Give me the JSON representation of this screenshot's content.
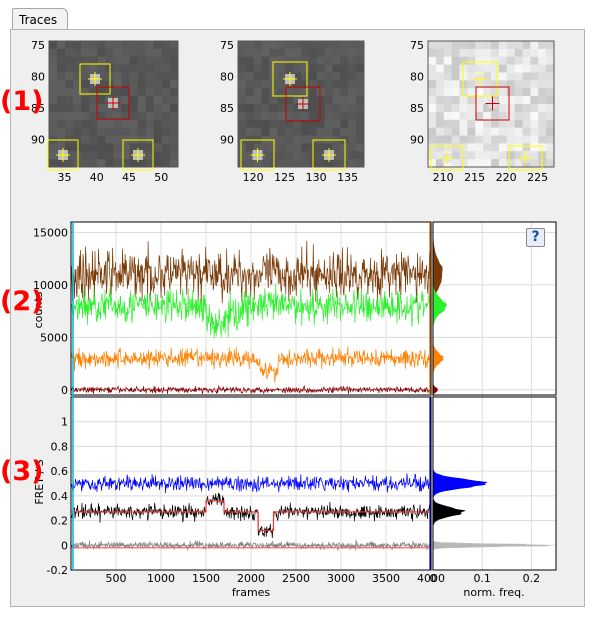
{
  "tab_label": "Traces",
  "section_labels": [
    "(1)",
    "(2)",
    "(3)"
  ],
  "help_label": "?",
  "images": [
    {
      "x_ticks": [
        "35",
        "40",
        "45",
        "50"
      ],
      "y_ticks": [
        "75",
        "80",
        "85",
        "90"
      ],
      "background": "gray"
    },
    {
      "x_ticks": [
        "120",
        "125",
        "130",
        "135"
      ],
      "y_ticks": [
        "75",
        "80",
        "85",
        "90"
      ],
      "background": "gray"
    },
    {
      "x_ticks": [
        "210",
        "215",
        "220",
        "225"
      ],
      "y_ticks": [
        "75",
        "80",
        "85",
        "90"
      ],
      "background": "light"
    }
  ],
  "chart_data": [
    {
      "type": "line",
      "ylabel": "counts",
      "ylim": [
        -500,
        16000
      ],
      "y_ticks": [
        "0",
        "5000",
        "10000",
        "15000"
      ],
      "xlim": [
        0,
        4000
      ],
      "series": [
        {
          "color": "#7a3a06",
          "mean": 11000,
          "spread": 1500
        },
        {
          "color": "#2bf02b",
          "mean": 8000,
          "spread": 1100
        },
        {
          "color": "#ff8000",
          "mean": 3000,
          "spread": 600
        },
        {
          "color": "#8b0000",
          "mean": 0,
          "spread": 200
        }
      ]
    },
    {
      "type": "line",
      "ylabel": "FRET / S",
      "xlabel": "frames",
      "ylim": [
        -0.2,
        1.2
      ],
      "y_ticks": [
        "-0.2",
        "0",
        "0.2",
        "0.4",
        "0.6",
        "0.8",
        "1"
      ],
      "x_ticks": [
        "500",
        "1000",
        "1500",
        "2000",
        "2500",
        "3000",
        "3500",
        "4000"
      ],
      "xlim": [
        0,
        4000
      ],
      "series": [
        {
          "color": "#0000ff",
          "mean": 0.5,
          "spread": 0.04
        },
        {
          "color": "#000000",
          "mean": 0.27,
          "spread": 0.04
        },
        {
          "color": "#808080",
          "mean": 0.0,
          "spread": 0.02
        }
      ]
    },
    {
      "type": "bar",
      "xlabel": "norm. freq.",
      "x_ticks": [
        "0",
        "0.1",
        "0.2"
      ],
      "xlim": [
        0,
        0.25
      ]
    }
  ],
  "colors": {
    "accent": "#ff0000",
    "roi": "#ffff00",
    "roi_selected": "#cc0000"
  }
}
